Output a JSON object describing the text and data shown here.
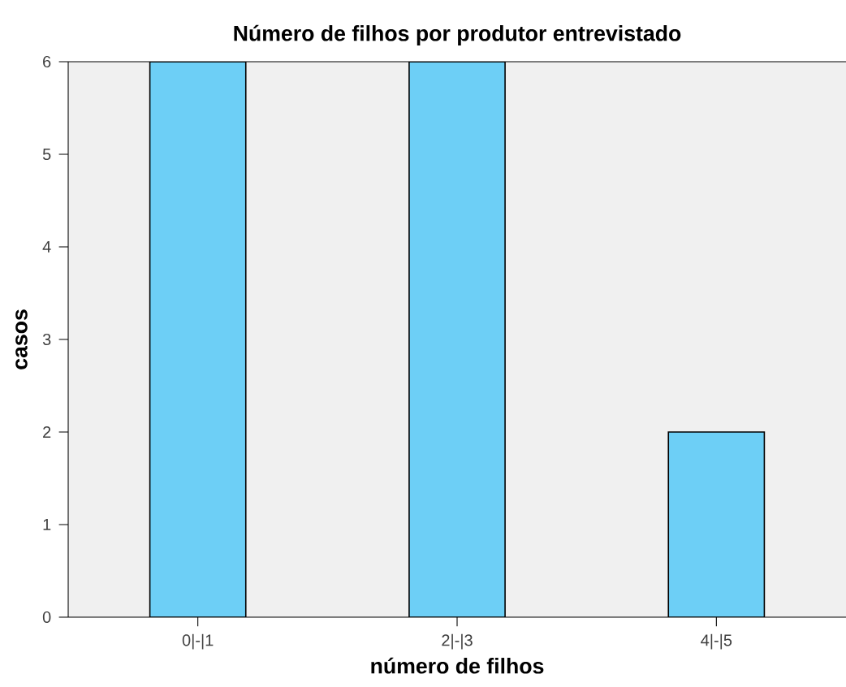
{
  "chart_data": {
    "type": "bar",
    "title": "Número de filhos por produtor entrevistado",
    "xlabel": "número de filhos",
    "ylabel": "casos",
    "categories": [
      "0|-|1",
      "2|-|3",
      "4|-|5"
    ],
    "values": [
      6,
      6,
      2
    ],
    "color": "#6dcff6",
    "ylim": [
      0,
      6
    ],
    "yticks": [
      0,
      1,
      2,
      3,
      4,
      5,
      6
    ]
  }
}
